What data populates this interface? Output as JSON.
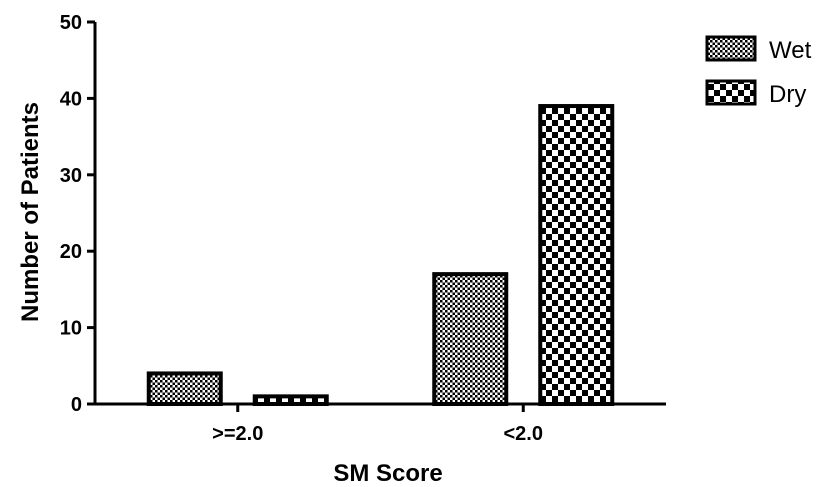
{
  "chart_data": {
    "type": "bar",
    "title": "",
    "xlabel": "SM Score",
    "ylabel": "Number of Patients",
    "categories": [
      ">=2.0",
      "<2.0"
    ],
    "series": [
      {
        "name": "Wet",
        "values": [
          4,
          17
        ]
      },
      {
        "name": "Dry",
        "values": [
          1,
          39
        ]
      }
    ],
    "ylim": [
      0,
      50
    ],
    "yticks": [
      0,
      10,
      20,
      30,
      40,
      50
    ],
    "grid": false,
    "legend": "top-right"
  }
}
